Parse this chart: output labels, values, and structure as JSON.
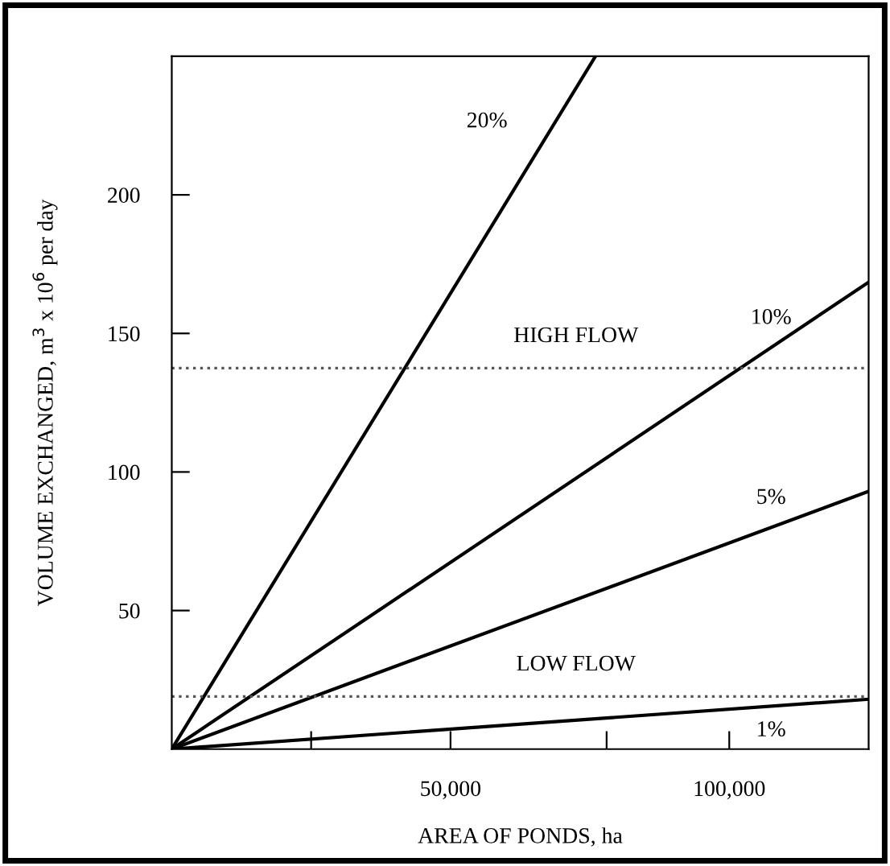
{
  "chart_data": {
    "type": "line",
    "xlabel": "AREA OF PONDS, ha",
    "ylabel": "VOLUME EXCHANGED, m$^{3}$ x 10$^{6}$ per day",
    "xlim": [
      0,
      125000
    ],
    "ylim": [
      0,
      250
    ],
    "xticks": [
      {
        "value": 25000,
        "label": null
      },
      {
        "value": 50000,
        "label": "50,000"
      },
      {
        "value": 78000,
        "label": null
      },
      {
        "value": 100000,
        "label": "100,000"
      }
    ],
    "yticks": [
      50,
      100,
      150,
      200
    ],
    "series": [
      {
        "name": "20%",
        "color": "#000000",
        "x": [
          0,
          76000
        ],
        "values": [
          0,
          250
        ]
      },
      {
        "name": "10%",
        "color": "#000000",
        "x": [
          0,
          125000
        ],
        "values": [
          0,
          168.5
        ]
      },
      {
        "name": "5%",
        "color": "#000000",
        "x": [
          0,
          125000
        ],
        "values": [
          0,
          93
        ]
      },
      {
        "name": "1%",
        "color": "#000000",
        "x": [
          0,
          125000
        ],
        "values": [
          0,
          18
        ]
      }
    ],
    "ref_lines": [
      {
        "axis": "y",
        "value": 137.5,
        "label": "HIGH FLOW",
        "color": "#555555",
        "line_style": "dotted"
      },
      {
        "axis": "y",
        "value": 19,
        "label": "LOW FLOW",
        "color": "#555555",
        "line_style": "dotted"
      }
    ],
    "grid": false,
    "legend": false,
    "marker": "none",
    "line_style": "solid"
  }
}
